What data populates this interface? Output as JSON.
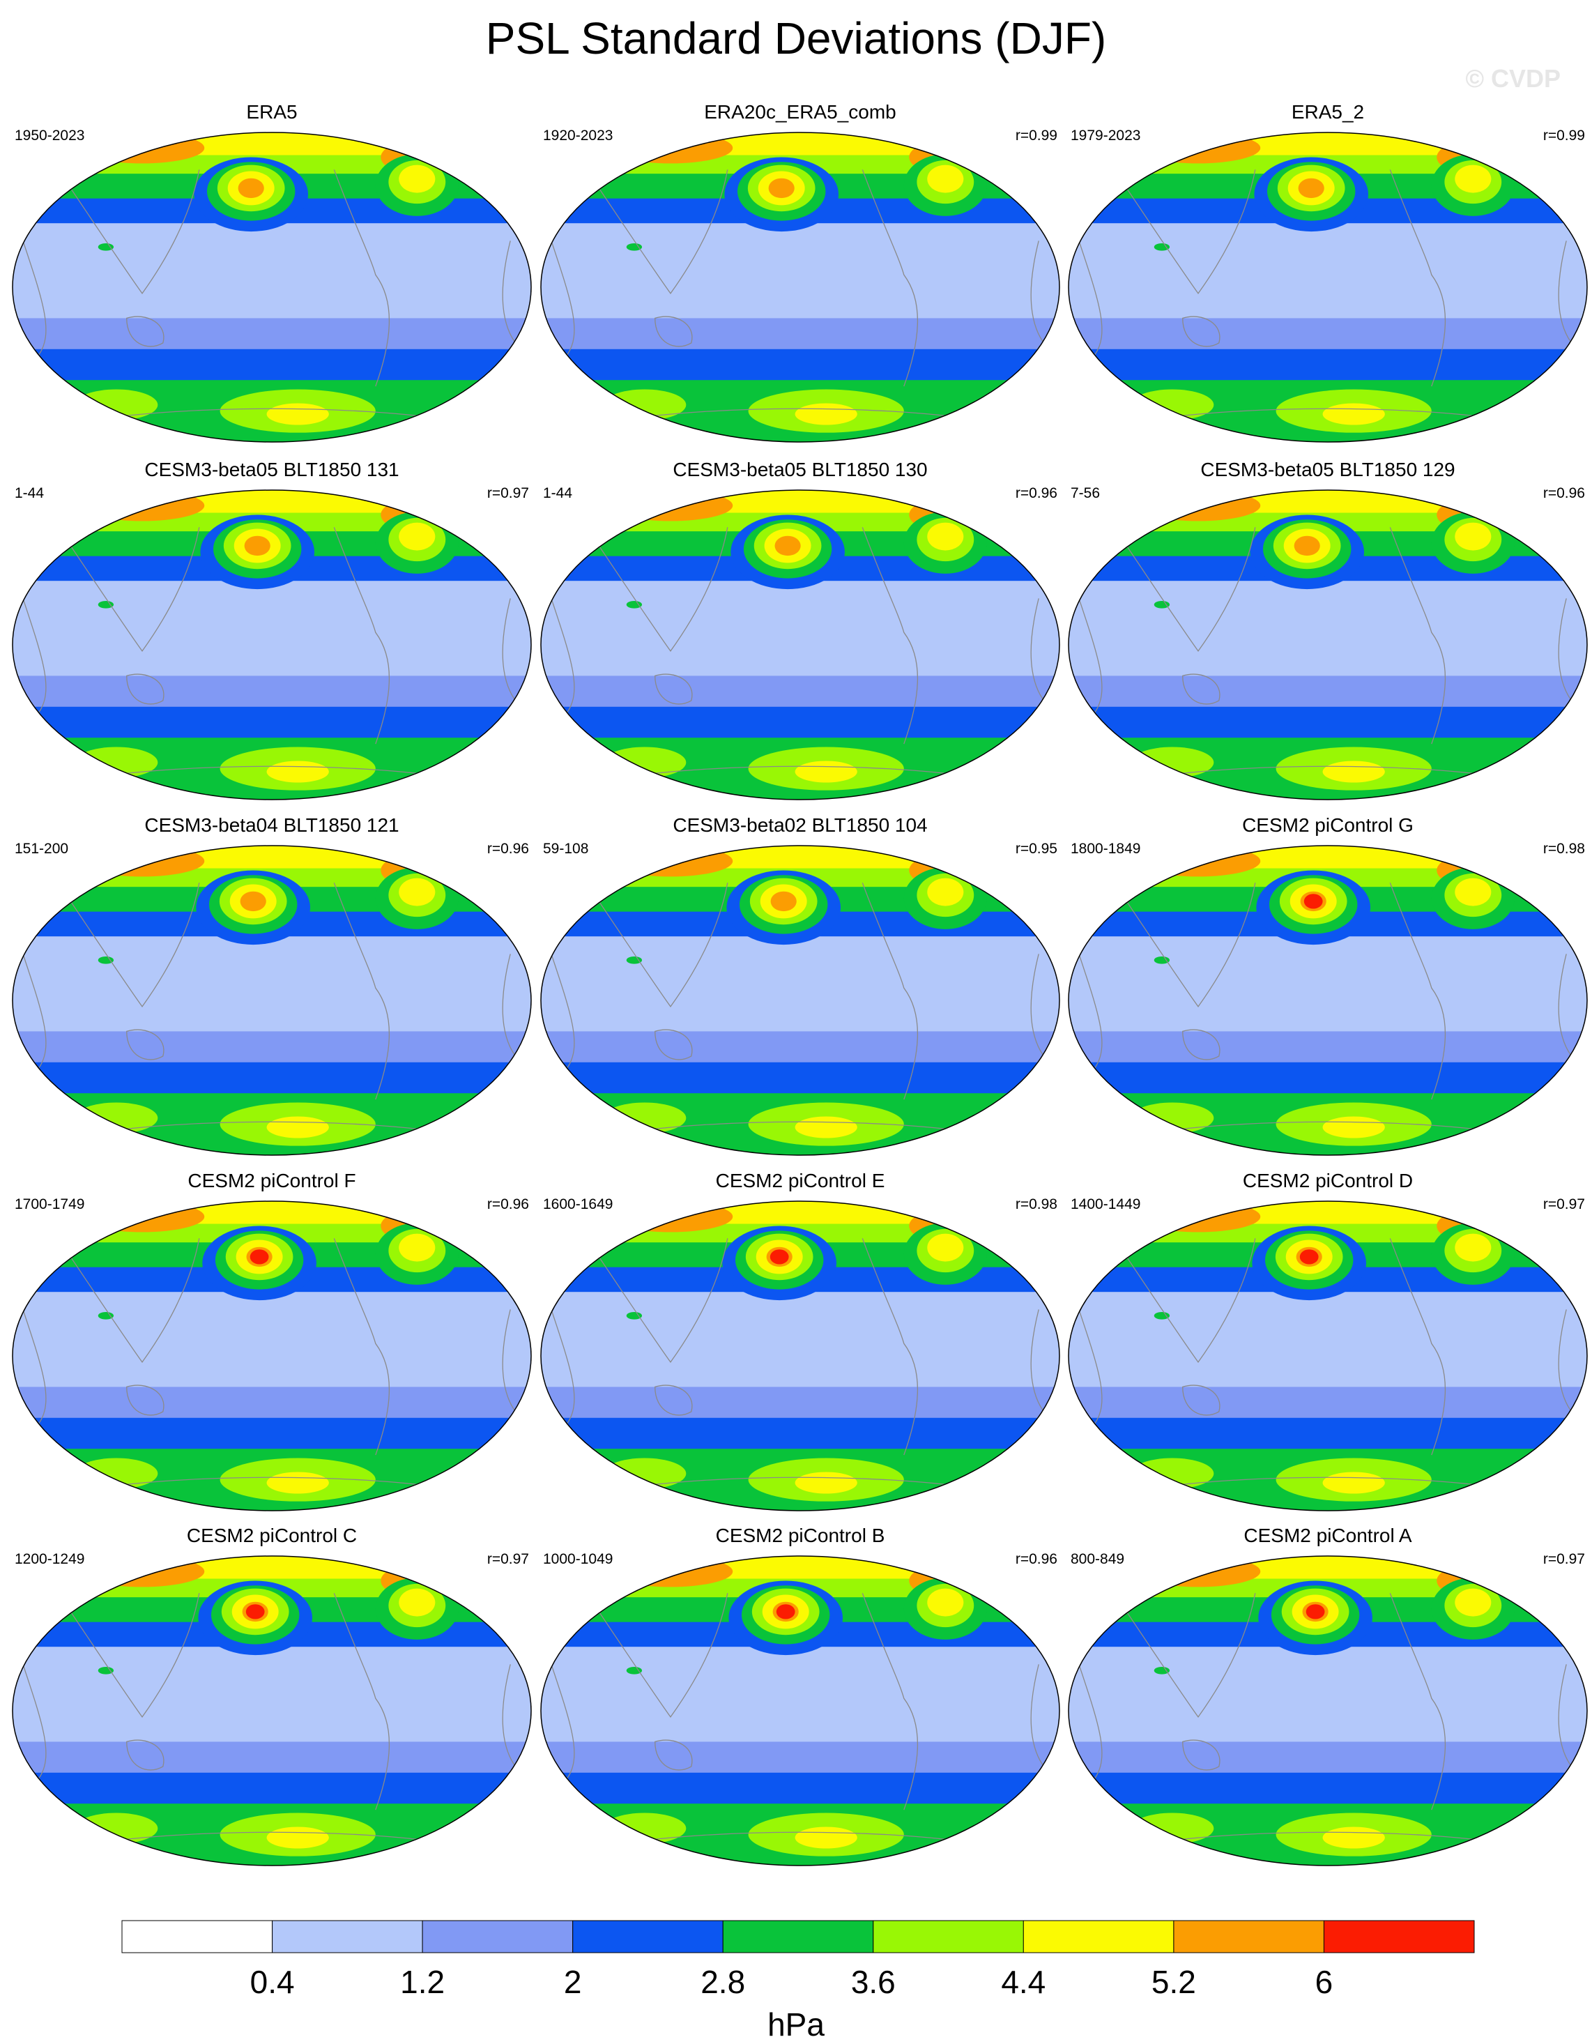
{
  "title": "PSL Standard Deviations (DJF)",
  "watermark": "© CVDP",
  "panels": [
    {
      "title": "ERA5",
      "period": "1950-2023",
      "corr": ""
    },
    {
      "title": "ERA20c_ERA5_comb",
      "period": "1920-2023",
      "corr": "r=0.99"
    },
    {
      "title": "ERA5_2",
      "period": "1979-2023",
      "corr": "r=0.99"
    },
    {
      "title": "CESM3-beta05 BLT1850 131",
      "period": "1-44",
      "corr": "r=0.97"
    },
    {
      "title": "CESM3-beta05 BLT1850 130",
      "period": "1-44",
      "corr": "r=0.96"
    },
    {
      "title": "CESM3-beta05 BLT1850 129",
      "period": "7-56",
      "corr": "r=0.96"
    },
    {
      "title": "CESM3-beta04 BLT1850 121",
      "period": "151-200",
      "corr": "r=0.96"
    },
    {
      "title": "CESM3-beta02 BLT1850 104",
      "period": "59-108",
      "corr": "r=0.95"
    },
    {
      "title": "CESM2 piControl G",
      "period": "1800-1849",
      "corr": "r=0.98"
    },
    {
      "title": "CESM2 piControl F",
      "period": "1700-1749",
      "corr": "r=0.96"
    },
    {
      "title": "CESM2 piControl E",
      "period": "1600-1649",
      "corr": "r=0.98"
    },
    {
      "title": "CESM2 piControl D",
      "period": "1400-1449",
      "corr": "r=0.97"
    },
    {
      "title": "CESM2 piControl C",
      "period": "1200-1249",
      "corr": "r=0.97"
    },
    {
      "title": "CESM2 piControl B",
      "period": "1000-1049",
      "corr": "r=0.96"
    },
    {
      "title": "CESM2 piControl A",
      "period": "800-849",
      "corr": "r=0.97"
    }
  ],
  "colorbar": {
    "unit": "hPa",
    "ticks": [
      "0.4",
      "1.2",
      "2",
      "2.8",
      "3.6",
      "4.4",
      "5.2",
      "6"
    ],
    "colors": [
      "#ffffff",
      "#b3c8fa",
      "#8199f4",
      "#0c56f1",
      "#09c33a",
      "#99f705",
      "#fbfa02",
      "#fb9d02",
      "#fb1c02"
    ]
  }
}
